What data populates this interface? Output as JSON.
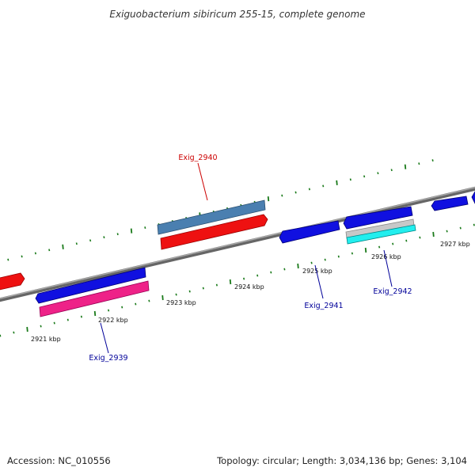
{
  "title": "Exiguobacterium sibiricum 255-15, complete genome",
  "footer": {
    "accession": "Accession: NC_010556",
    "summary": "Topology: circular; Length: 3,034,136 bp; Genes: 3,104"
  },
  "colors": {
    "backbone": "#808080",
    "tick": "#1a7a1a",
    "gene_blue": "#1010e0",
    "gene_red": "#ee1111",
    "gene_steelblue": "#4a7fb0",
    "gene_pink": "#ee2288",
    "gene_cyan": "#22eeee",
    "gene_gray": "#c8c8c8",
    "label_red": "#cc0000",
    "label_blue": "#000099"
  },
  "kbp_labels": [
    "2921 kbp",
    "2922 kbp",
    "2923 kbp",
    "2924 kbp",
    "2925 kbp",
    "2926 kbp",
    "2927 kbp"
  ],
  "gene_labels": [
    {
      "name": "Exig_2940",
      "color": "#cc0000"
    },
    {
      "name": "Exig_2939",
      "color": "#000099"
    },
    {
      "name": "Exig_2941",
      "color": "#000099"
    },
    {
      "name": "Exig_2942",
      "color": "#000099"
    }
  ]
}
